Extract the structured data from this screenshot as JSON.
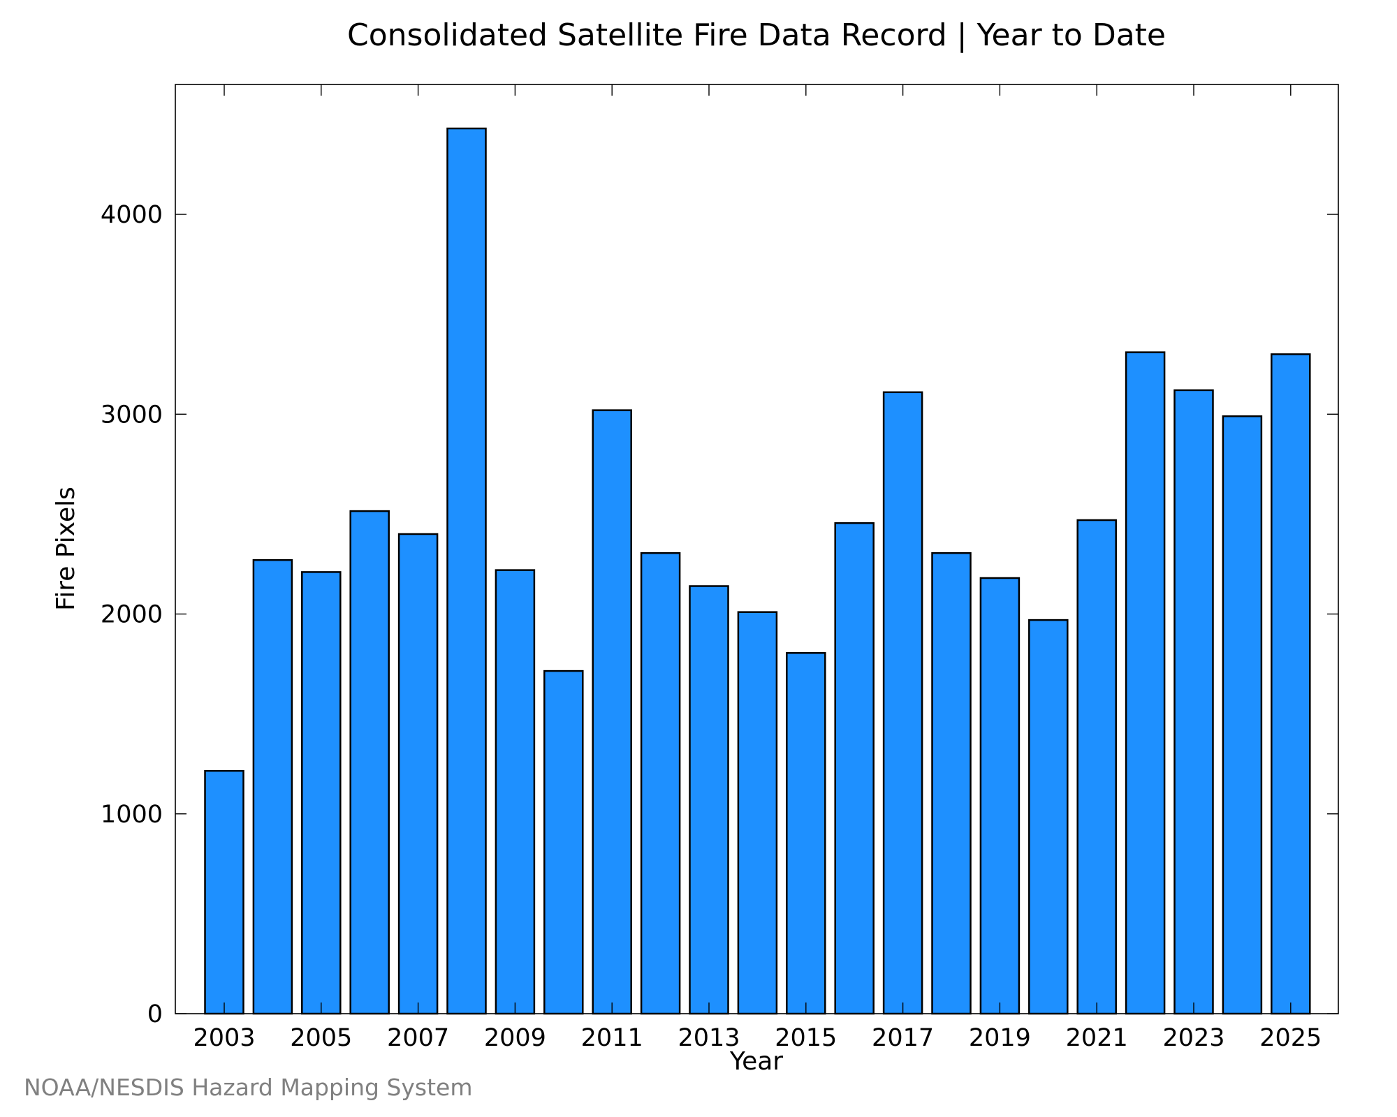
{
  "chart_data": {
    "type": "bar",
    "title": "Consolidated Satellite Fire Data Record | Year to Date",
    "xlabel": "Year",
    "ylabel": "Fire Pixels",
    "categories": [
      "2003",
      "2004",
      "2005",
      "2006",
      "2007",
      "2008",
      "2009",
      "2010",
      "2011",
      "2012",
      "2013",
      "2014",
      "2015",
      "2016",
      "2017",
      "2018",
      "2019",
      "2020",
      "2021",
      "2022",
      "2023",
      "2024",
      "2025"
    ],
    "values": [
      1215,
      2270,
      2210,
      2515,
      2400,
      4430,
      2220,
      1715,
      3020,
      2305,
      2140,
      2010,
      1805,
      2455,
      3110,
      2305,
      2180,
      1970,
      2470,
      3310,
      3120,
      2990,
      3300
    ],
    "ylim": [
      0,
      4650
    ],
    "yticks": [
      0,
      1000,
      2000,
      3000,
      4000
    ],
    "xticks": [
      "2003",
      "2005",
      "2007",
      "2009",
      "2011",
      "2013",
      "2015",
      "2017",
      "2019",
      "2021",
      "2023",
      "2025"
    ],
    "bar_color": "#1e90ff",
    "grid": false,
    "legend": "none"
  },
  "footer": {
    "credit": "NOAA/NESDIS Hazard Mapping System"
  }
}
